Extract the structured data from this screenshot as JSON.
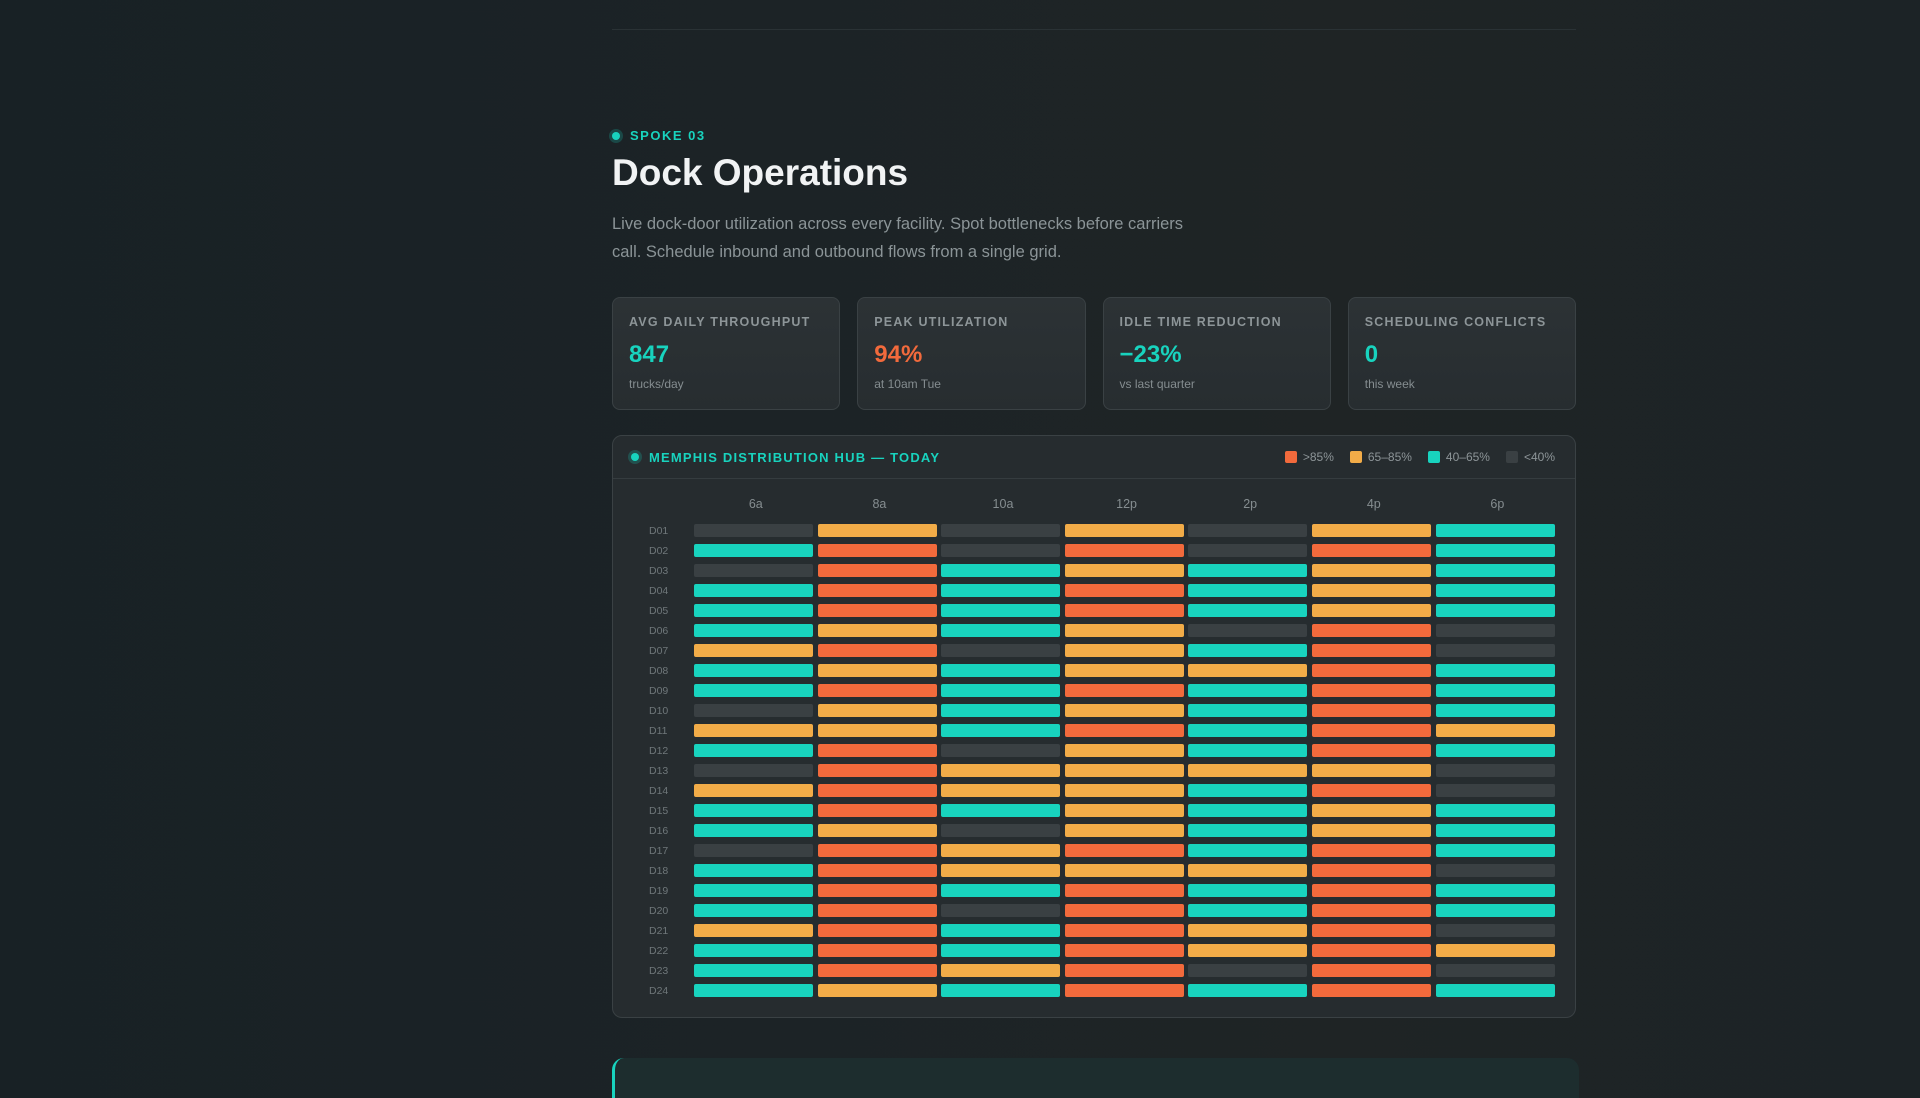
{
  "eyebrow": "SPOKE 03",
  "title": "Dock Operations",
  "description": "Live dock-door utilization across every facility. Spot bottlenecks before carriers call. Schedule inbound and outbound flows from a single grid.",
  "stats": [
    {
      "label": "AVG DAILY THROUGHPUT",
      "value": "847",
      "sub": "trucks/day",
      "color": "#18d3be"
    },
    {
      "label": "PEAK UTILIZATION",
      "value": "94%",
      "sub": "at 10am Tue",
      "color": "#f26a3c"
    },
    {
      "label": "IDLE TIME REDUCTION",
      "value": "−23%",
      "sub": "vs last quarter",
      "color": "#18d3be"
    },
    {
      "label": "SCHEDULING CONFLICTS",
      "value": "0",
      "sub": "this week",
      "color": "#18d3be"
    }
  ],
  "panel": {
    "title": "MEMPHIS DISTRIBUTION HUB — TODAY",
    "legend": [
      {
        "label": ">85%",
        "level": "h",
        "color": "#f26a3c"
      },
      {
        "label": "65–85%",
        "level": "m",
        "color": "#f2ac48"
      },
      {
        "label": "40–65%",
        "level": "l",
        "color": "#18d3be"
      },
      {
        "label": "<40%",
        "level": "i",
        "color": "#3a4043"
      }
    ],
    "hours": [
      "6a",
      "8a",
      "10a",
      "12p",
      "2p",
      "4p",
      "6p"
    ],
    "rows": [
      {
        "dock": "D01",
        "levels": [
          "i",
          "m",
          "i",
          "m",
          "i",
          "m",
          "l"
        ]
      },
      {
        "dock": "D02",
        "levels": [
          "l",
          "h",
          "i",
          "h",
          "i",
          "h",
          "l"
        ]
      },
      {
        "dock": "D03",
        "levels": [
          "i",
          "h",
          "l",
          "m",
          "l",
          "m",
          "l"
        ]
      },
      {
        "dock": "D04",
        "levels": [
          "l",
          "h",
          "l",
          "h",
          "l",
          "m",
          "l"
        ]
      },
      {
        "dock": "D05",
        "levels": [
          "l",
          "h",
          "l",
          "h",
          "l",
          "m",
          "l"
        ]
      },
      {
        "dock": "D06",
        "levels": [
          "l",
          "m",
          "l",
          "m",
          "i",
          "h",
          "i"
        ]
      },
      {
        "dock": "D07",
        "levels": [
          "m",
          "h",
          "i",
          "m",
          "l",
          "h",
          "i"
        ]
      },
      {
        "dock": "D08",
        "levels": [
          "l",
          "m",
          "l",
          "m",
          "m",
          "h",
          "l"
        ]
      },
      {
        "dock": "D09",
        "levels": [
          "l",
          "h",
          "l",
          "h",
          "l",
          "h",
          "l"
        ]
      },
      {
        "dock": "D10",
        "levels": [
          "i",
          "m",
          "l",
          "m",
          "l",
          "h",
          "l"
        ]
      },
      {
        "dock": "D11",
        "levels": [
          "m",
          "m",
          "l",
          "h",
          "l",
          "h",
          "m"
        ]
      },
      {
        "dock": "D12",
        "levels": [
          "l",
          "h",
          "i",
          "m",
          "l",
          "h",
          "l"
        ]
      },
      {
        "dock": "D13",
        "levels": [
          "i",
          "h",
          "m",
          "m",
          "m",
          "m",
          "i"
        ]
      },
      {
        "dock": "D14",
        "levels": [
          "m",
          "h",
          "m",
          "m",
          "l",
          "h",
          "i"
        ]
      },
      {
        "dock": "D15",
        "levels": [
          "l",
          "h",
          "l",
          "m",
          "l",
          "m",
          "l"
        ]
      },
      {
        "dock": "D16",
        "levels": [
          "l",
          "m",
          "i",
          "m",
          "l",
          "m",
          "l"
        ]
      },
      {
        "dock": "D17",
        "levels": [
          "i",
          "h",
          "m",
          "h",
          "l",
          "h",
          "l"
        ]
      },
      {
        "dock": "D18",
        "levels": [
          "l",
          "h",
          "m",
          "m",
          "m",
          "h",
          "i"
        ]
      },
      {
        "dock": "D19",
        "levels": [
          "l",
          "h",
          "l",
          "h",
          "l",
          "h",
          "l"
        ]
      },
      {
        "dock": "D20",
        "levels": [
          "l",
          "h",
          "i",
          "h",
          "l",
          "h",
          "l"
        ]
      },
      {
        "dock": "D21",
        "levels": [
          "m",
          "h",
          "l",
          "h",
          "m",
          "h",
          "i"
        ]
      },
      {
        "dock": "D22",
        "levels": [
          "l",
          "h",
          "l",
          "h",
          "m",
          "h",
          "m"
        ]
      },
      {
        "dock": "D23",
        "levels": [
          "l",
          "h",
          "m",
          "h",
          "i",
          "h",
          "i"
        ]
      },
      {
        "dock": "D24",
        "levels": [
          "l",
          "m",
          "l",
          "h",
          "l",
          "h",
          "l"
        ]
      }
    ]
  }
}
